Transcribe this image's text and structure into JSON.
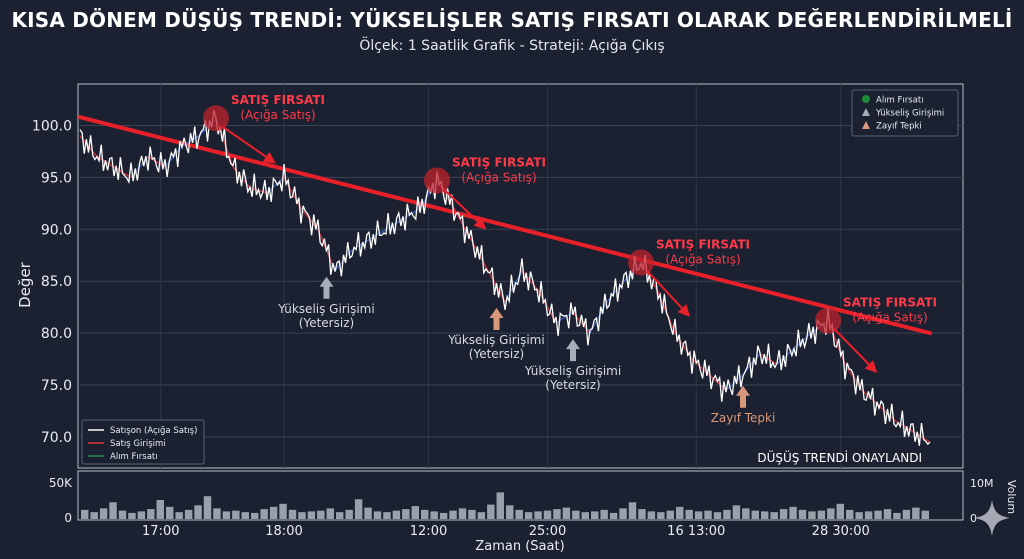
{
  "title": "KISA DÖNEM DÜŞÜŞ TRENDİ: YÜKSELİŞLER SATIŞ FIRSATI OLARAK DEĞERLENDİRİLMELİ",
  "subtitle": "Ölçek: 1 Saatlik Grafik - Strateji: Açığa Çıkış",
  "colors": {
    "background": "#1b2130",
    "price_line": "#ffffff",
    "sell_line": "#e0303a",
    "buy_line": "#3a5fd0",
    "trend_line": "#e8202a",
    "annotation_red": "#ff3b4a",
    "arrow_gray": "#a8aeb8",
    "arrow_orange": "#d9987a",
    "volume_bar": "#9aa0aa"
  },
  "chart_data": [
    {
      "type": "line",
      "ylabel": "Değer",
      "xlabel": "Zaman (Saat)",
      "ylim": [
        67,
        104
      ],
      "yticks": [
        "70.0",
        "75.0",
        "80.0",
        "85.0",
        "90.0",
        "95.0",
        "100.0"
      ],
      "ytick_values": [
        70,
        75,
        80,
        85,
        90,
        95,
        100
      ],
      "xticks": [
        "17:00",
        "18:00",
        "12:00",
        "25:00",
        "16 13:00",
        "28 30:00"
      ],
      "xtick_positions": [
        0.095,
        0.24,
        0.41,
        0.55,
        0.725,
        0.895
      ],
      "grid": true,
      "legend_top_right": [
        {
          "label": "Alım Fırsatı",
          "icon": "green-dot-icon"
        },
        {
          "label": "Yükseliş Girişimi",
          "icon": "gray-arrow-icon"
        },
        {
          "label": "Zayıf Tepki",
          "icon": "orange-arrow-icon"
        }
      ],
      "legend_bottom_left": [
        {
          "label": "Satışon (Açığa Satış)",
          "color": "#ffffff"
        },
        {
          "label": "Satış Girişimi",
          "color": "#e0303a"
        },
        {
          "label": "Alım Fırsatı",
          "color": "#2a8a5a"
        }
      ],
      "series": [
        {
          "name": "Satışon (Açığa Satış)",
          "x": [
            0,
            0.02,
            0.04,
            0.06,
            0.08,
            0.1,
            0.12,
            0.14,
            0.16,
            0.18,
            0.2,
            0.22,
            0.24,
            0.26,
            0.28,
            0.3,
            0.32,
            0.34,
            0.36,
            0.38,
            0.4,
            0.42,
            0.44,
            0.46,
            0.48,
            0.5,
            0.52,
            0.54,
            0.56,
            0.58,
            0.6,
            0.62,
            0.64,
            0.66,
            0.68,
            0.7,
            0.72,
            0.74,
            0.76,
            0.78,
            0.8,
            0.82,
            0.84,
            0.86,
            0.88,
            0.9,
            0.92,
            0.94,
            0.96,
            0.98,
            1.0
          ],
          "values": [
            99,
            97,
            96,
            95,
            97,
            96,
            98,
            99,
            100.7,
            96,
            94,
            93.5,
            95,
            92,
            90,
            86,
            88,
            89,
            90,
            91,
            92,
            94.7,
            92,
            89,
            86,
            83,
            86,
            84,
            81,
            82,
            80,
            83,
            85,
            86.8,
            84,
            80,
            77.5,
            76,
            74.5,
            76,
            78,
            77,
            78.5,
            80,
            81.2,
            77,
            74.5,
            73,
            71.5,
            70.5,
            69.5
          ]
        }
      ],
      "trend_line": {
        "start": [
          0.0,
          100.8
        ],
        "end": [
          1.0,
          80.0
        ]
      },
      "sell_points": [
        {
          "x": 0.16,
          "y": 100.7,
          "label1": "SATIŞ FIRSATI",
          "label2": "(Açığa Satış)"
        },
        {
          "x": 0.42,
          "y": 94.7,
          "label1": "SATIŞ FIRSATI",
          "label2": "(Açığa Satış)"
        },
        {
          "x": 0.66,
          "y": 86.8,
          "label1": "SATIŞ FIRSATI",
          "label2": "(Açığa Satış)"
        },
        {
          "x": 0.88,
          "y": 81.2,
          "label1": "SATIŞ FIRSATI",
          "label2": "(Açığa Satış)"
        }
      ],
      "annotations": [
        {
          "x": 0.29,
          "y": 86,
          "label1": "Yükseliş Girişimi",
          "label2": "(Yetersiz)",
          "kind": "gray"
        },
        {
          "x": 0.49,
          "y": 83,
          "label1": "Yükseliş Girişimi",
          "label2": "(Yetersiz)",
          "kind": "orange"
        },
        {
          "x": 0.58,
          "y": 80,
          "label1": "Yükseliş Girişimi",
          "label2": "(Yetersiz)",
          "kind": "gray"
        },
        {
          "x": 0.78,
          "y": 75.5,
          "label1": "Zayıf Tepki",
          "label2": "",
          "kind": "orange"
        }
      ],
      "bottom_right_note": "DÜŞÜŞ TRENDİ ONAYLANDI"
    },
    {
      "type": "bar",
      "ylabel_right": "Volum",
      "yticks_left": [
        "0",
        "50K"
      ],
      "yticks_right": [
        "0",
        "10M"
      ],
      "values": [
        12,
        9,
        14,
        22,
        11,
        8,
        10,
        13,
        25,
        16,
        9,
        12,
        18,
        30,
        14,
        10,
        11,
        9,
        8,
        13,
        16,
        20,
        12,
        9,
        10,
        11,
        14,
        9,
        12,
        26,
        15,
        10,
        9,
        11,
        13,
        17,
        12,
        10,
        8,
        11,
        14,
        12,
        9,
        19,
        35,
        18,
        12,
        9,
        10,
        11,
        13,
        15,
        11,
        9,
        10,
        12,
        8,
        14,
        22,
        13,
        10,
        9,
        11,
        16,
        12,
        10,
        11,
        9,
        12,
        18,
        14,
        11,
        10,
        9,
        13,
        16,
        12,
        10,
        11,
        14,
        20,
        12,
        9,
        10,
        11,
        13,
        8,
        12,
        15,
        11
      ]
    }
  ]
}
